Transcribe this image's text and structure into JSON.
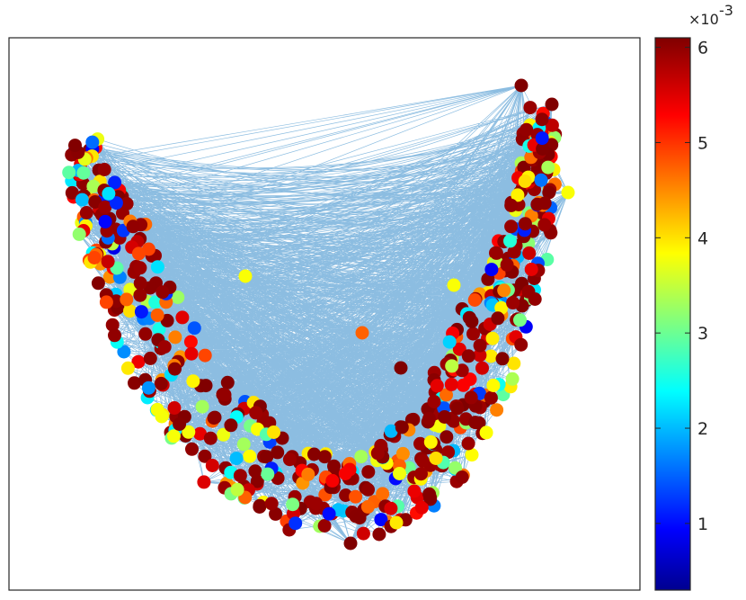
{
  "chart_data": {
    "type": "scatter",
    "subtype": "network-graph",
    "title": "",
    "xlabel": "",
    "ylabel": "",
    "axes_ticks_visible": false,
    "grid": false,
    "legend": "none",
    "node_count_approx": 600,
    "node_marker": "filled-circle",
    "edge_color": "#2e86c9",
    "shape_description": "U/V-shaped point cloud with dense blue edge bundle",
    "hub_nodes_visible": 4,
    "colorbar": {
      "colormap": "jet",
      "location": "right",
      "range": [
        0.0003,
        0.0061
      ],
      "ticks": [
        1,
        2,
        3,
        4,
        5,
        6
      ],
      "tick_labels": [
        "1",
        "2",
        "3",
        "4",
        "5",
        "6"
      ],
      "exponent_label": "×10",
      "exponent_power": "-3"
    },
    "value_distribution": {
      "dominant_band": "dark red (≈6e-3)",
      "other_levels": [
        "orange",
        "yellow",
        "green",
        "cyan",
        "blue"
      ]
    }
  }
}
